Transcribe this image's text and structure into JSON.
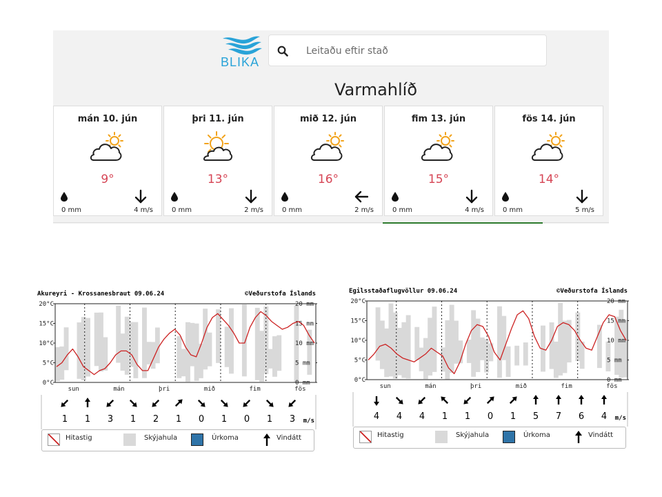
{
  "blika": {
    "logo_text": "BLIKA",
    "search_placeholder": "Leitaðu eftir stað",
    "location": "Varmahlíð",
    "days": [
      {
        "label": "mán 10. jún",
        "icon": "partly-cloudy-icon",
        "temp": "9°",
        "precip": "0 mm",
        "wind": "4 m/s",
        "wind_arrow": "down"
      },
      {
        "label": "þri 11. jún",
        "icon": "sun-behind-cloud-icon",
        "temp": "13°",
        "precip": "0 mm",
        "wind": "2 m/s",
        "wind_arrow": "down"
      },
      {
        "label": "mið 12. jún",
        "icon": "partly-cloudy-icon",
        "temp": "16°",
        "precip": "0 mm",
        "wind": "2 m/s",
        "wind_arrow": "left"
      },
      {
        "label": "fim 13. jún",
        "icon": "partly-cloudy-icon",
        "temp": "15°",
        "precip": "0 mm",
        "wind": "4 m/s",
        "wind_arrow": "down"
      },
      {
        "label": "fös 14. jún",
        "icon": "partly-cloudy-icon",
        "temp": "14°",
        "precip": "0 mm",
        "wind": "5 m/s",
        "wind_arrow": "down"
      }
    ],
    "colors": {
      "temp": "#d64555",
      "logo": "#29a3d8",
      "sun": "#f2a31b"
    }
  },
  "vedur": {
    "copyright": "©Veðurstofa Íslands",
    "y_left": [
      "20°C",
      "15°C",
      "10°C",
      "5°C",
      "0°C"
    ],
    "y_right": [
      "20 mm",
      "15 mm",
      "10 mm",
      "5 mm",
      "0 mm"
    ],
    "days": [
      "sun",
      "mán",
      "þri",
      "mið",
      "fim",
      "fös"
    ],
    "wind_unit": "m/s",
    "legend": {
      "temp": "Hitastig",
      "cloud": "Skýjahula",
      "precip": "Úrkoma",
      "wind": "Vindátt"
    },
    "colors": {
      "temp_line": "#cc2222",
      "cloud": "#d9d9d9",
      "precip": "#2f74a8"
    }
  },
  "chart_data": [
    {
      "type": "line",
      "title": "Akureyri - Krossanesbraut 09.06.24",
      "xlabel": "",
      "ylabel": "°C",
      "ylim": [
        0,
        20
      ],
      "y2label": "mm",
      "y2lim": [
        0,
        20
      ],
      "x_days": [
        "sun",
        "mán",
        "þri",
        "mið",
        "fim",
        "fös"
      ],
      "temperature": [
        4,
        5,
        7,
        8.5,
        6.5,
        4,
        3,
        2,
        3,
        3.5,
        5,
        7,
        8,
        8,
        7,
        4.5,
        3,
        3,
        6,
        9,
        11,
        12.5,
        13.5,
        12,
        9,
        7,
        6.5,
        10,
        14,
        16.5,
        17.5,
        16,
        14.5,
        12.5,
        10,
        10,
        14,
        16.5,
        18,
        17,
        15.5,
        14.5,
        13.5,
        14,
        15,
        15.5,
        14.5,
        12,
        10
      ],
      "cloud_cover_present": true,
      "precipitation_mm": 0,
      "wind_speed": [
        1,
        1,
        3,
        1,
        2,
        1,
        0,
        1,
        0,
        1,
        3
      ],
      "wind_direction": [
        "sw",
        "n",
        "sw",
        "se",
        "sw",
        "ne",
        "se",
        "se",
        "sw",
        "se",
        "sw"
      ]
    },
    {
      "type": "line",
      "title": "Egilsstaðaflugvöllur 09.06.24",
      "xlabel": "",
      "ylabel": "°C",
      "ylim": [
        0,
        20
      ],
      "y2label": "mm",
      "y2lim": [
        0,
        20
      ],
      "x_days": [
        "sun",
        "mán",
        "þri",
        "mið",
        "fim",
        "fös"
      ],
      "temperature": [
        5,
        6.5,
        8.5,
        9,
        8,
        6.5,
        5.5,
        5,
        4.5,
        5.5,
        6.5,
        8,
        7,
        6,
        3,
        1.5,
        4.5,
        9,
        12.5,
        14,
        13.5,
        11,
        7,
        5,
        9,
        13,
        16.5,
        17.5,
        15.5,
        11,
        8,
        7.5,
        10,
        13.5,
        14.5,
        14,
        12.5,
        10,
        8,
        7.5,
        11,
        14.5,
        16.5,
        16,
        12.5,
        10
      ],
      "cloud_cover_present": true,
      "precipitation_mm": 0,
      "wind_speed": [
        4,
        4,
        4,
        1,
        1,
        0,
        1,
        5,
        7,
        6,
        4
      ],
      "wind_direction": [
        "s",
        "se",
        "sw",
        "nw",
        "sw",
        "ne",
        "ne",
        "n",
        "n",
        "n",
        "n"
      ]
    }
  ]
}
